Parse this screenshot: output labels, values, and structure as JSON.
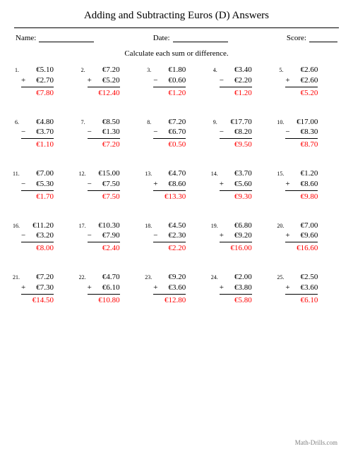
{
  "title": "Adding and Subtracting Euros (D) Answers",
  "labels": {
    "name": "Name:",
    "date": "Date:",
    "score": "Score:"
  },
  "instruction": "Calculate each sum or difference.",
  "footer": "Math-Drills.com",
  "colors": {
    "text": "#000000",
    "answer": "#ff0000",
    "footer": "#808080",
    "bg": "#ffffff"
  },
  "fonts": {
    "title_pt": 15,
    "body_pt": 11,
    "num_pt": 8,
    "footer_pt": 9
  },
  "layout": {
    "cols": 5,
    "rows": 5
  },
  "problems": [
    {
      "n": "1.",
      "a": "€5.10",
      "op": "+",
      "b": "€2.70",
      "ans": "€7.80"
    },
    {
      "n": "2.",
      "a": "€7.20",
      "op": "+",
      "b": "€5.20",
      "ans": "€12.40"
    },
    {
      "n": "3.",
      "a": "€1.80",
      "op": "−",
      "b": "€0.60",
      "ans": "€1.20"
    },
    {
      "n": "4.",
      "a": "€3.40",
      "op": "−",
      "b": "€2.20",
      "ans": "€1.20"
    },
    {
      "n": "5.",
      "a": "€2.60",
      "op": "+",
      "b": "€2.60",
      "ans": "€5.20"
    },
    {
      "n": "6.",
      "a": "€4.80",
      "op": "−",
      "b": "€3.70",
      "ans": "€1.10"
    },
    {
      "n": "7.",
      "a": "€8.50",
      "op": "−",
      "b": "€1.30",
      "ans": "€7.20"
    },
    {
      "n": "8.",
      "a": "€7.20",
      "op": "−",
      "b": "€6.70",
      "ans": "€0.50"
    },
    {
      "n": "9.",
      "a": "€17.70",
      "op": "−",
      "b": "€8.20",
      "ans": "€9.50"
    },
    {
      "n": "10.",
      "a": "€17.00",
      "op": "−",
      "b": "€8.30",
      "ans": "€8.70"
    },
    {
      "n": "11.",
      "a": "€7.00",
      "op": "−",
      "b": "€5.30",
      "ans": "€1.70"
    },
    {
      "n": "12.",
      "a": "€15.00",
      "op": "−",
      "b": "€7.50",
      "ans": "€7.50"
    },
    {
      "n": "13.",
      "a": "€4.70",
      "op": "+",
      "b": "€8.60",
      "ans": "€13.30"
    },
    {
      "n": "14.",
      "a": "€3.70",
      "op": "+",
      "b": "€5.60",
      "ans": "€9.30"
    },
    {
      "n": "15.",
      "a": "€1.20",
      "op": "+",
      "b": "€8.60",
      "ans": "€9.80"
    },
    {
      "n": "16.",
      "a": "€11.20",
      "op": "−",
      "b": "€3.20",
      "ans": "€8.00"
    },
    {
      "n": "17.",
      "a": "€10.30",
      "op": "−",
      "b": "€7.90",
      "ans": "€2.40"
    },
    {
      "n": "18.",
      "a": "€4.50",
      "op": "−",
      "b": "€2.30",
      "ans": "€2.20"
    },
    {
      "n": "19.",
      "a": "€6.80",
      "op": "+",
      "b": "€9.20",
      "ans": "€16.00"
    },
    {
      "n": "20.",
      "a": "€7.00",
      "op": "+",
      "b": "€9.60",
      "ans": "€16.60"
    },
    {
      "n": "21.",
      "a": "€7.20",
      "op": "+",
      "b": "€7.30",
      "ans": "€14.50"
    },
    {
      "n": "22.",
      "a": "€4.70",
      "op": "+",
      "b": "€6.10",
      "ans": "€10.80"
    },
    {
      "n": "23.",
      "a": "€9.20",
      "op": "+",
      "b": "€3.60",
      "ans": "€12.80"
    },
    {
      "n": "24.",
      "a": "€2.00",
      "op": "+",
      "b": "€3.80",
      "ans": "€5.80"
    },
    {
      "n": "25.",
      "a": "€2.50",
      "op": "+",
      "b": "€3.60",
      "ans": "€6.10"
    }
  ]
}
